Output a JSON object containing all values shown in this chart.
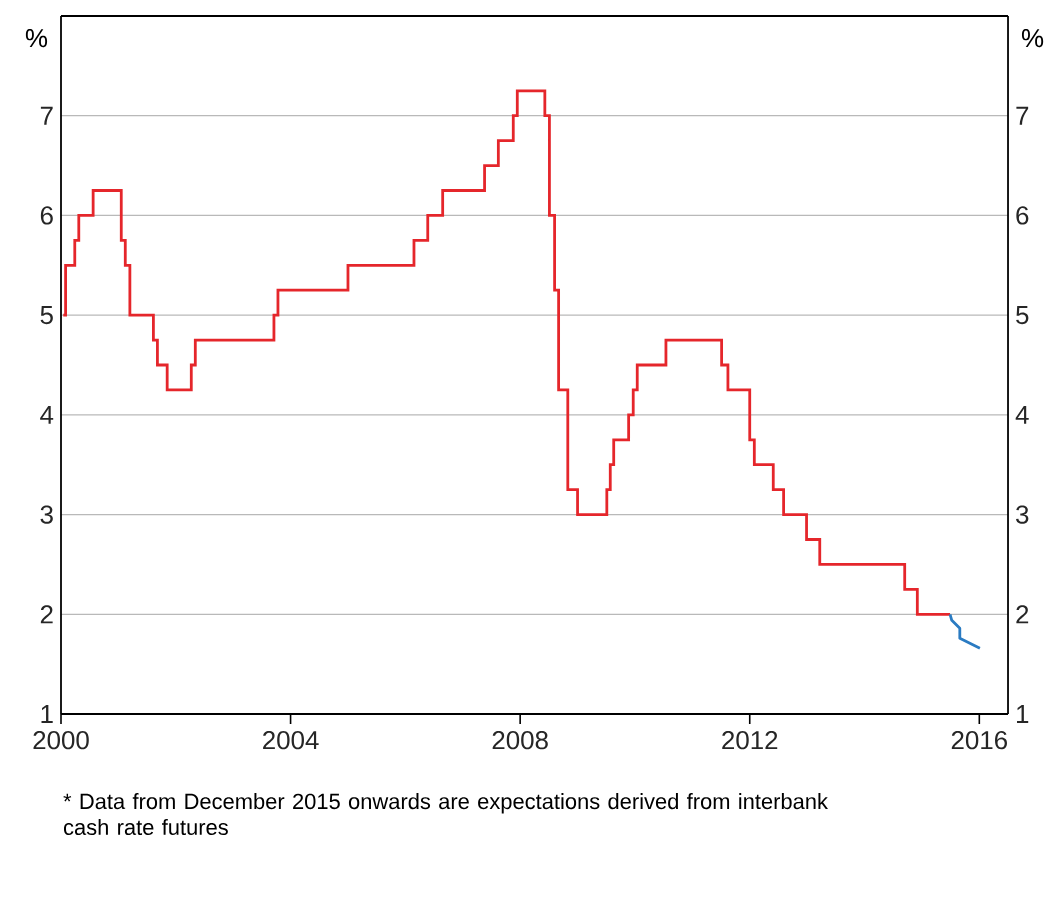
{
  "chart_data": {
    "type": "step",
    "ylabel": "%",
    "y2label": "%",
    "xlim": [
      2000,
      2016.5
    ],
    "xticks": [
      2000,
      2004,
      2008,
      2012,
      2016
    ],
    "ylim": [
      1,
      8
    ],
    "yticks": [
      1,
      2,
      3,
      4,
      5,
      6,
      7
    ],
    "y2lim": [
      1,
      8
    ],
    "y2ticks": [
      1,
      2,
      3,
      4,
      5,
      6,
      7
    ],
    "grid": "y",
    "line_style": "solid",
    "marker": "none",
    "series": [
      {
        "color": "#e5262b",
        "x": [
          2000.04,
          2000.08,
          2000.24,
          2000.31,
          2000.56,
          2001.05,
          2001.12,
          2001.2,
          2001.61,
          2001.68,
          2001.85,
          2002.27,
          2002.34,
          2003.71,
          2003.78,
          2005.0,
          2006.15,
          2006.39,
          2006.65,
          2007.38,
          2007.62,
          2007.88,
          2007.95,
          2008.43,
          2008.51,
          2008.6,
          2008.67,
          2008.83,
          2009.0,
          2009.51,
          2009.57,
          2009.63,
          2009.89,
          2009.97,
          2010.04,
          2010.54,
          2011.51,
          2011.62,
          2012.0,
          2012.08,
          2012.41,
          2012.59,
          2012.99,
          2013.22,
          2014.7,
          2014.92,
          2015.49
        ],
        "values": [
          5.0,
          5.5,
          5.75,
          6.0,
          6.25,
          5.75,
          5.5,
          5.0,
          4.75,
          4.5,
          4.25,
          4.5,
          4.75,
          5.0,
          5.25,
          5.5,
          5.75,
          6.0,
          6.25,
          6.5,
          6.75,
          7.0,
          7.25,
          7.0,
          6.0,
          5.25,
          4.25,
          3.25,
          3.0,
          3.25,
          3.5,
          3.75,
          4.0,
          4.25,
          4.5,
          4.75,
          4.5,
          4.25,
          3.75,
          3.5,
          3.25,
          3.0,
          2.75,
          2.5,
          2.25,
          2.0,
          2.0
        ]
      },
      {
        "type": "line",
        "color": "#2a7bc2",
        "x": [
          2015.49,
          2015.52,
          2015.66,
          2015.66,
          2016.01
        ],
        "values": [
          2.0,
          1.94,
          1.86,
          1.76,
          1.66
        ]
      }
    ],
    "annotations": [
      "*   Data from December 2015 onwards are expectations derived from interbank cash rate futures"
    ]
  }
}
